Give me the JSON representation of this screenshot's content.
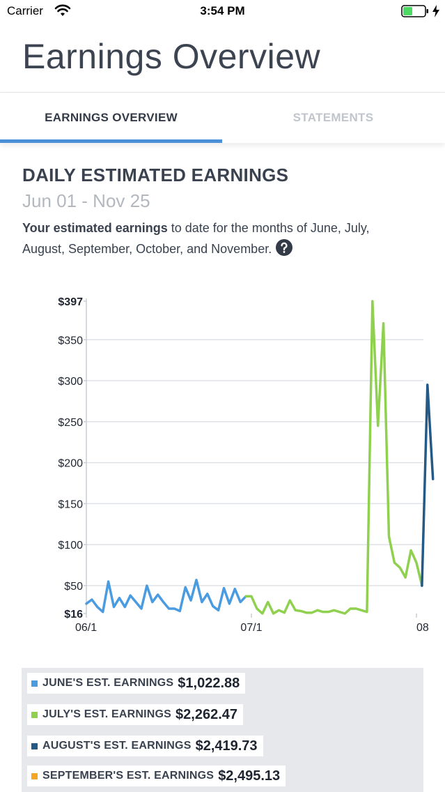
{
  "status_bar": {
    "carrier": "Carrier",
    "time": "3:54 PM",
    "battery_color": "#4cd964"
  },
  "header": {
    "title": "Earnings Overview"
  },
  "tabs": [
    {
      "label": "EARNINGS OVERVIEW",
      "active": true
    },
    {
      "label": "STATEMENTS",
      "active": false
    }
  ],
  "section": {
    "title": "DAILY ESTIMATED EARNINGS",
    "date_range": "Jun 01 - Nov 25",
    "description_bold": "Your estimated earnings",
    "description_rest": " to date for the months of June, July, August, September, October, and November.",
    "help_icon": "question-circle-icon"
  },
  "colors": {
    "accent": "#4a90d9",
    "june": "#4a9be0",
    "july": "#8fd14f",
    "august": "#245a85",
    "september": "#f5a623",
    "grid": "#dfe2e6"
  },
  "chart_data": {
    "type": "line",
    "y_ticks": [
      "$397",
      "$350",
      "$300",
      "$250",
      "$200",
      "$150",
      "$100",
      "$50",
      "$16"
    ],
    "y_tick_values": [
      397,
      350,
      300,
      250,
      200,
      150,
      100,
      50,
      16
    ],
    "x_ticks": [
      "06/1",
      "07/1",
      "08"
    ],
    "ylim": [
      16,
      397
    ],
    "grid": true,
    "series": [
      {
        "name": "June",
        "color": "#4a9be0",
        "values": [
          28,
          33,
          24,
          18,
          55,
          24,
          35,
          24,
          38,
          30,
          22,
          50,
          30,
          39,
          30,
          22,
          22,
          19,
          48,
          32,
          57,
          30,
          40,
          25,
          20,
          47,
          28,
          46,
          30,
          37
        ]
      },
      {
        "name": "July",
        "color": "#8fd14f",
        "values": [
          37,
          22,
          16,
          30,
          16,
          20,
          17,
          32,
          20,
          19,
          17,
          17,
          20,
          18,
          18,
          20,
          18,
          16,
          22,
          22,
          20,
          18,
          397,
          245,
          370,
          110,
          78,
          72,
          60,
          93,
          78,
          50
        ]
      },
      {
        "name": "August",
        "color": "#245a85",
        "values": [
          295,
          180
        ]
      }
    ]
  },
  "legend": [
    {
      "label": "JUNE'S EST. EARNINGS",
      "value": "$1,022.88",
      "color": "#4a9be0"
    },
    {
      "label": "JULY'S EST. EARNINGS",
      "value": "$2,262.47",
      "color": "#8fd14f"
    },
    {
      "label": "AUGUST'S EST. EARNINGS",
      "value": "$2,419.73",
      "color": "#245a85"
    },
    {
      "label": "SEPTEMBER'S EST. EARNINGS",
      "value": "$2,495.13",
      "color": "#f5a623"
    }
  ]
}
